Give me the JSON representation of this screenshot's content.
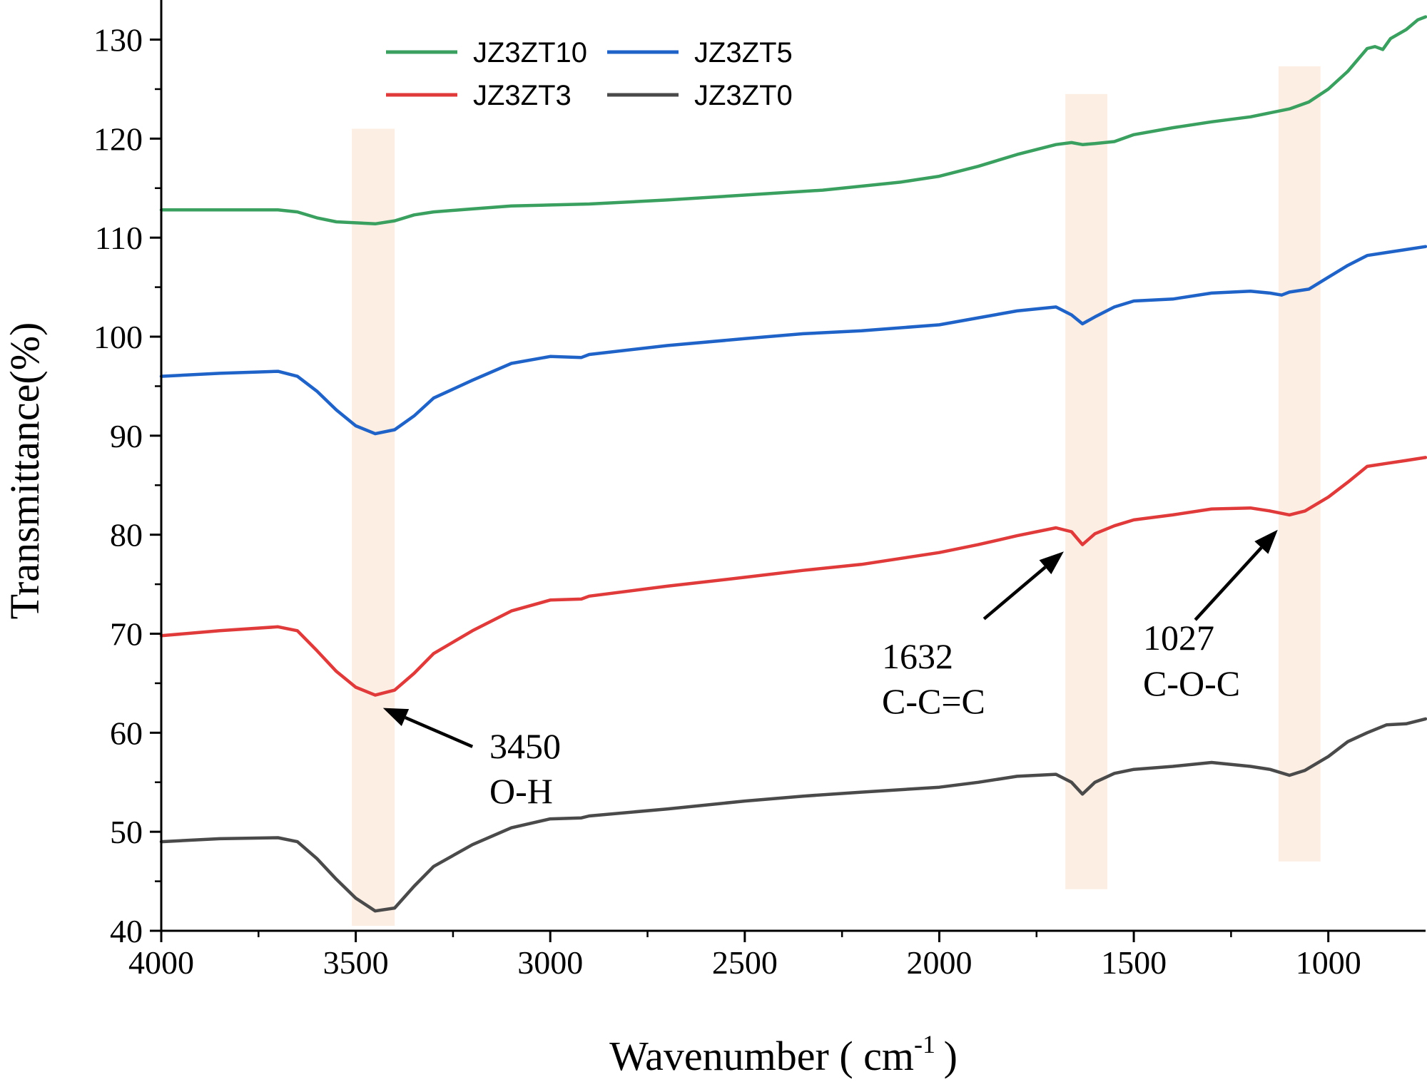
{
  "chart_data": {
    "type": "line",
    "xlabel": "Wavenumber ( cm",
    "xlabel_superscript": "-1",
    "xlabel_suffix": ")",
    "ylabel": "Transmittance(%)",
    "xlim": [
      4000,
      750
    ],
    "ylim": [
      40,
      134
    ],
    "x_reversed": true,
    "x_ticks": [
      4000,
      3500,
      3000,
      2500,
      2000,
      1500,
      1000
    ],
    "y_ticks": [
      40,
      50,
      60,
      70,
      80,
      90,
      100,
      110,
      120,
      130
    ],
    "legend_position": "top-left",
    "series": [
      {
        "name": "JZ3ZT10",
        "color": "#3aa060",
        "points": [
          [
            4000,
            112.8
          ],
          [
            3850,
            112.8
          ],
          [
            3700,
            112.8
          ],
          [
            3650,
            112.6
          ],
          [
            3600,
            112.0
          ],
          [
            3550,
            111.6
          ],
          [
            3500,
            111.5
          ],
          [
            3450,
            111.4
          ],
          [
            3400,
            111.7
          ],
          [
            3350,
            112.3
          ],
          [
            3300,
            112.6
          ],
          [
            3200,
            112.9
          ],
          [
            3100,
            113.2
          ],
          [
            3000,
            113.3
          ],
          [
            2900,
            113.4
          ],
          [
            2700,
            113.8
          ],
          [
            2500,
            114.3
          ],
          [
            2300,
            114.8
          ],
          [
            2100,
            115.6
          ],
          [
            2000,
            116.2
          ],
          [
            1900,
            117.2
          ],
          [
            1800,
            118.4
          ],
          [
            1700,
            119.4
          ],
          [
            1660,
            119.6
          ],
          [
            1632,
            119.4
          ],
          [
            1600,
            119.5
          ],
          [
            1550,
            119.7
          ],
          [
            1500,
            120.4
          ],
          [
            1400,
            121.1
          ],
          [
            1300,
            121.7
          ],
          [
            1200,
            122.2
          ],
          [
            1100,
            123.0
          ],
          [
            1050,
            123.7
          ],
          [
            1000,
            125.0
          ],
          [
            950,
            126.8
          ],
          [
            900,
            129.1
          ],
          [
            880,
            129.3
          ],
          [
            860,
            129.0
          ],
          [
            840,
            130.1
          ],
          [
            800,
            131.0
          ],
          [
            770,
            132.0
          ],
          [
            750,
            132.3
          ]
        ]
      },
      {
        "name": "JZ3ZT5",
        "color": "#1f63c8",
        "points": [
          [
            4000,
            96.0
          ],
          [
            3850,
            96.3
          ],
          [
            3700,
            96.5
          ],
          [
            3650,
            96.0
          ],
          [
            3600,
            94.5
          ],
          [
            3550,
            92.6
          ],
          [
            3500,
            91.0
          ],
          [
            3450,
            90.2
          ],
          [
            3400,
            90.6
          ],
          [
            3350,
            92.0
          ],
          [
            3300,
            93.8
          ],
          [
            3200,
            95.6
          ],
          [
            3100,
            97.3
          ],
          [
            3000,
            98.0
          ],
          [
            2920,
            97.9
          ],
          [
            2900,
            98.2
          ],
          [
            2700,
            99.1
          ],
          [
            2500,
            99.8
          ],
          [
            2350,
            100.3
          ],
          [
            2200,
            100.6
          ],
          [
            2000,
            101.2
          ],
          [
            1900,
            101.9
          ],
          [
            1800,
            102.6
          ],
          [
            1700,
            103.0
          ],
          [
            1660,
            102.2
          ],
          [
            1632,
            101.3
          ],
          [
            1600,
            102.0
          ],
          [
            1550,
            103.0
          ],
          [
            1500,
            103.6
          ],
          [
            1400,
            103.8
          ],
          [
            1300,
            104.4
          ],
          [
            1200,
            104.6
          ],
          [
            1150,
            104.4
          ],
          [
            1120,
            104.2
          ],
          [
            1100,
            104.5
          ],
          [
            1050,
            104.8
          ],
          [
            1000,
            106.0
          ],
          [
            950,
            107.2
          ],
          [
            900,
            108.2
          ],
          [
            850,
            108.5
          ],
          [
            800,
            108.8
          ],
          [
            750,
            109.1
          ]
        ]
      },
      {
        "name": "JZ3ZT3",
        "color": "#e03a3a",
        "points": [
          [
            4000,
            69.8
          ],
          [
            3850,
            70.3
          ],
          [
            3700,
            70.7
          ],
          [
            3650,
            70.3
          ],
          [
            3600,
            68.3
          ],
          [
            3550,
            66.2
          ],
          [
            3500,
            64.6
          ],
          [
            3450,
            63.8
          ],
          [
            3400,
            64.3
          ],
          [
            3350,
            66.0
          ],
          [
            3300,
            68.0
          ],
          [
            3200,
            70.3
          ],
          [
            3100,
            72.3
          ],
          [
            3000,
            73.4
          ],
          [
            2920,
            73.5
          ],
          [
            2900,
            73.8
          ],
          [
            2700,
            74.8
          ],
          [
            2500,
            75.7
          ],
          [
            2350,
            76.4
          ],
          [
            2200,
            77.0
          ],
          [
            2000,
            78.2
          ],
          [
            1900,
            79.0
          ],
          [
            1800,
            79.9
          ],
          [
            1700,
            80.7
          ],
          [
            1660,
            80.3
          ],
          [
            1632,
            79.0
          ],
          [
            1600,
            80.1
          ],
          [
            1550,
            80.9
          ],
          [
            1500,
            81.5
          ],
          [
            1400,
            82.0
          ],
          [
            1300,
            82.6
          ],
          [
            1200,
            82.7
          ],
          [
            1150,
            82.4
          ],
          [
            1100,
            82.0
          ],
          [
            1060,
            82.4
          ],
          [
            1000,
            83.8
          ],
          [
            950,
            85.3
          ],
          [
            900,
            86.9
          ],
          [
            850,
            87.2
          ],
          [
            800,
            87.5
          ],
          [
            750,
            87.8
          ]
        ]
      },
      {
        "name": "JZ3ZT0",
        "color": "#4a4a4a",
        "points": [
          [
            4000,
            49.0
          ],
          [
            3850,
            49.3
          ],
          [
            3700,
            49.4
          ],
          [
            3650,
            49.0
          ],
          [
            3600,
            47.3
          ],
          [
            3550,
            45.2
          ],
          [
            3500,
            43.3
          ],
          [
            3450,
            42.0
          ],
          [
            3400,
            42.3
          ],
          [
            3350,
            44.5
          ],
          [
            3300,
            46.5
          ],
          [
            3200,
            48.7
          ],
          [
            3100,
            50.4
          ],
          [
            3000,
            51.3
          ],
          [
            2920,
            51.4
          ],
          [
            2900,
            51.6
          ],
          [
            2700,
            52.3
          ],
          [
            2500,
            53.1
          ],
          [
            2350,
            53.6
          ],
          [
            2200,
            54.0
          ],
          [
            2000,
            54.5
          ],
          [
            1900,
            55.0
          ],
          [
            1800,
            55.6
          ],
          [
            1700,
            55.8
          ],
          [
            1660,
            55.0
          ],
          [
            1632,
            53.8
          ],
          [
            1600,
            55.0
          ],
          [
            1550,
            55.9
          ],
          [
            1500,
            56.3
          ],
          [
            1400,
            56.6
          ],
          [
            1300,
            57.0
          ],
          [
            1200,
            56.6
          ],
          [
            1150,
            56.3
          ],
          [
            1100,
            55.7
          ],
          [
            1060,
            56.2
          ],
          [
            1000,
            57.6
          ],
          [
            950,
            59.1
          ],
          [
            900,
            60.0
          ],
          [
            850,
            60.8
          ],
          [
            800,
            60.9
          ],
          [
            750,
            61.4
          ]
        ]
      }
    ],
    "bands": [
      {
        "x_from": 3510,
        "x_to": 3400,
        "y_from": 40.5,
        "y_to": 121
      },
      {
        "x_from": 1676,
        "x_to": 1568,
        "y_from": 44.2,
        "y_to": 124.5
      },
      {
        "x_from": 1128,
        "x_to": 1020,
        "y_from": 47,
        "y_to": 127.3
      }
    ],
    "band_color": "#fdeee4",
    "annotations": [
      {
        "line1": "3450",
        "line2": "O-H",
        "from": [
          3200,
          58.6
        ],
        "to": [
          3430,
          62.5
        ]
      },
      {
        "line1": "1632",
        "line2": "C-C=C",
        "from": [
          1885,
          71.5
        ],
        "to": [
          1680,
          78.3
        ]
      },
      {
        "line1": "1027",
        "line2": "C-O-C",
        "from": [
          1342,
          71.4
        ],
        "to": [
          1130,
          80.5
        ]
      }
    ]
  }
}
